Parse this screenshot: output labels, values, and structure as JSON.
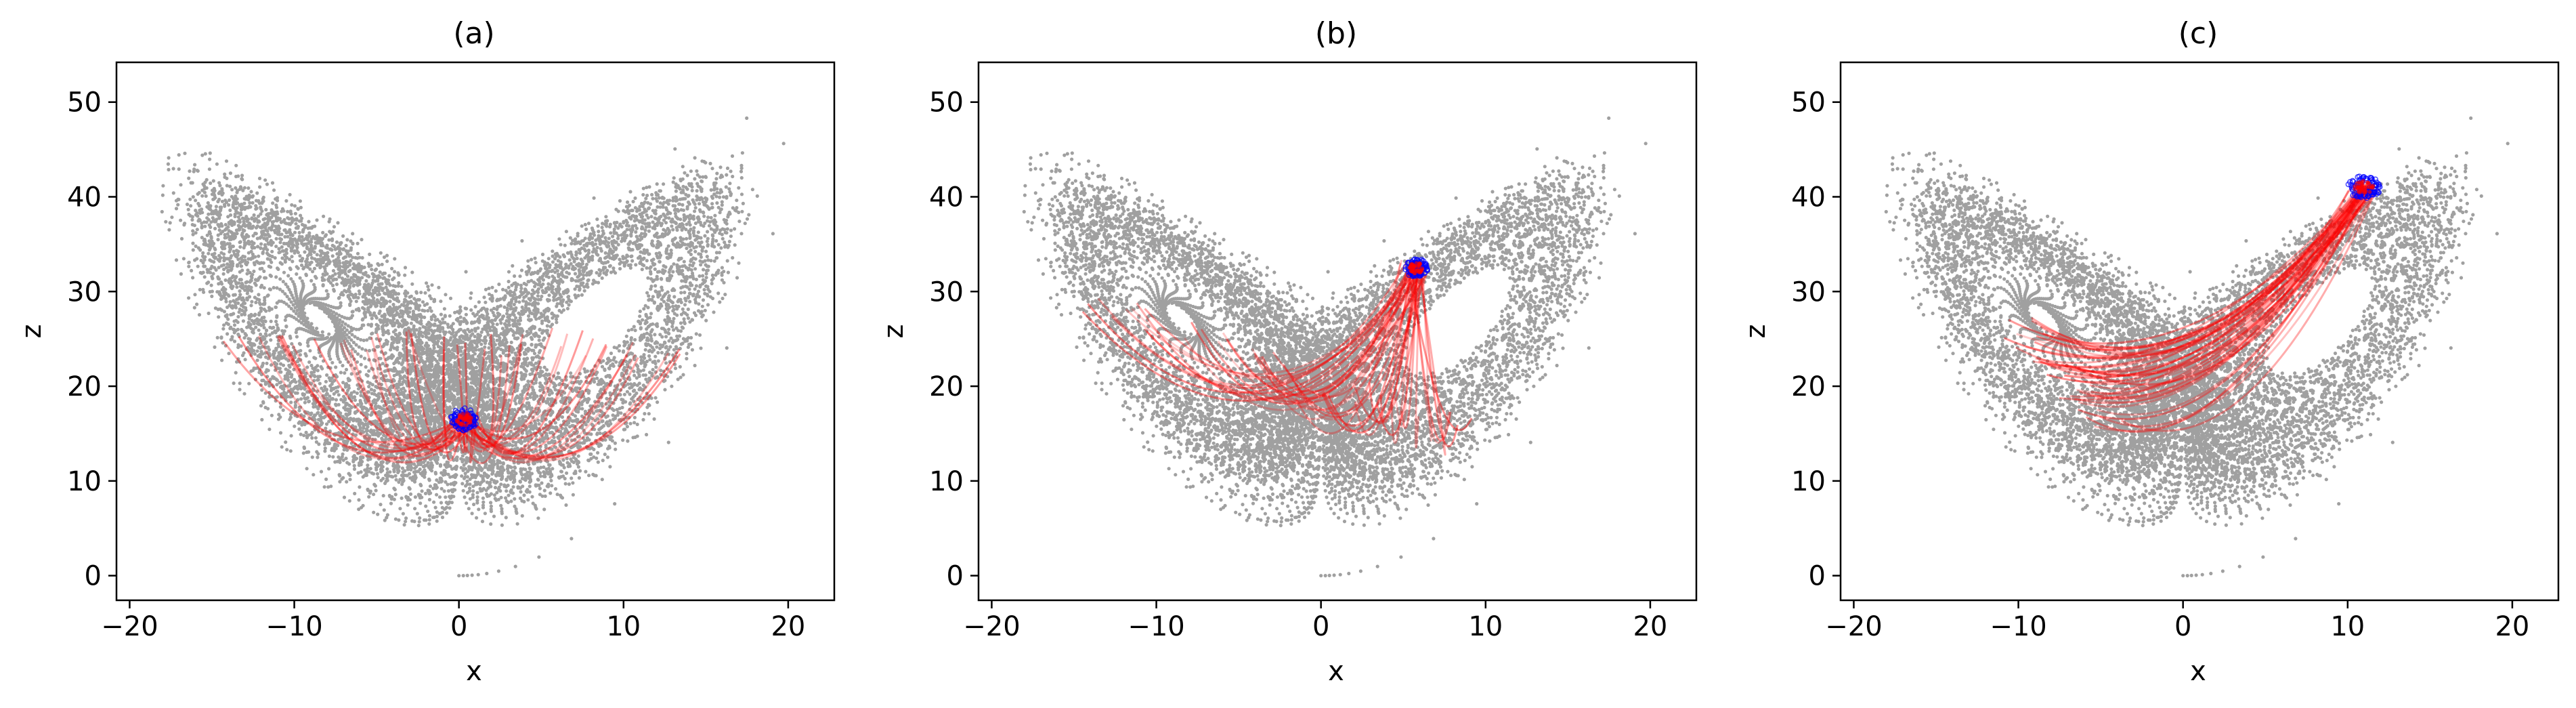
{
  "chart_data": [
    {
      "type": "scatter",
      "title": "(a)",
      "xlabel": "x",
      "ylabel": "z",
      "xlim": [
        -20.8,
        22.8
      ],
      "ylim": [
        -2.6,
        54.2
      ],
      "xticks": [
        -20,
        -10,
        0,
        10,
        20
      ],
      "xtick_labels": [
        "−20",
        "−10",
        "0",
        "10",
        "20"
      ],
      "yticks": [
        0,
        10,
        20,
        30,
        40,
        50
      ],
      "ytick_labels": [
        "0",
        "10",
        "20",
        "30",
        "40",
        "50"
      ],
      "grid": false,
      "background_series": {
        "name": "",
        "color": "#a0a0a0",
        "kind": "Lorenz attractor trajectory (points)",
        "x_range": [
          -19,
          21
        ],
        "z_range": [
          0,
          51
        ]
      },
      "ensemble_series": {
        "color": "#ff0000",
        "kind": "trajectory fan",
        "start": [
          0.3,
          16.5
        ],
        "left_end": [
          -14,
          25
        ],
        "right_end": [
          14,
          24
        ],
        "lowest_z": 7
      },
      "cluster_series": {
        "color": "#0000ff",
        "center": [
          0.3,
          16.5
        ],
        "spread": [
          0.8,
          1.2
        ]
      }
    },
    {
      "type": "scatter",
      "title": "(b)",
      "xlabel": "x",
      "ylabel": "z",
      "xlim": [
        -20.8,
        22.8
      ],
      "ylim": [
        -2.6,
        54.2
      ],
      "xticks": [
        -20,
        -10,
        0,
        10,
        20
      ],
      "xtick_labels": [
        "−20",
        "−10",
        "0",
        "10",
        "20"
      ],
      "yticks": [
        0,
        10,
        20,
        30,
        40,
        50
      ],
      "ytick_labels": [
        "0",
        "10",
        "20",
        "30",
        "40",
        "50"
      ],
      "grid": false,
      "background_series": {
        "name": "",
        "color": "#a0a0a0",
        "kind": "Lorenz attractor trajectory (points)",
        "x_range": [
          -19,
          21
        ],
        "z_range": [
          0,
          51
        ]
      },
      "ensemble_series": {
        "color": "#ff0000",
        "kind": "trajectory fan",
        "start": [
          5.8,
          32.5
        ],
        "left_end": [
          -14,
          30
        ],
        "right_end": [
          9,
          15
        ],
        "lowest_z": 8
      },
      "cluster_series": {
        "color": "#0000ff",
        "center": [
          5.8,
          32.5
        ],
        "spread": [
          0.7,
          1.0
        ]
      }
    },
    {
      "type": "scatter",
      "title": "(c)",
      "xlabel": "x",
      "ylabel": "z",
      "xlim": [
        -20.8,
        22.8
      ],
      "ylim": [
        -2.6,
        54.2
      ],
      "xticks": [
        -20,
        -10,
        0,
        10,
        20
      ],
      "xtick_labels": [
        "−20",
        "−10",
        "0",
        "10",
        "20"
      ],
      "yticks": [
        0,
        10,
        20,
        30,
        40,
        50
      ],
      "ytick_labels": [
        "0",
        "10",
        "20",
        "30",
        "40",
        "50"
      ],
      "grid": false,
      "background_series": {
        "name": "",
        "color": "#a0a0a0",
        "kind": "Lorenz attractor trajectory (points)",
        "x_range": [
          -19,
          21
        ],
        "z_range": [
          0,
          51
        ]
      },
      "ensemble_series": {
        "color": "#ff0000",
        "kind": "trajectory fan",
        "start": [
          11,
          41
        ],
        "left_end": [
          -10,
          26
        ],
        "right_end": [
          -5,
          17
        ],
        "lowest_z": 17
      },
      "cluster_series": {
        "color": "#0000ff",
        "center": [
          11,
          41
        ],
        "spread": [
          1.0,
          1.2
        ]
      }
    }
  ]
}
